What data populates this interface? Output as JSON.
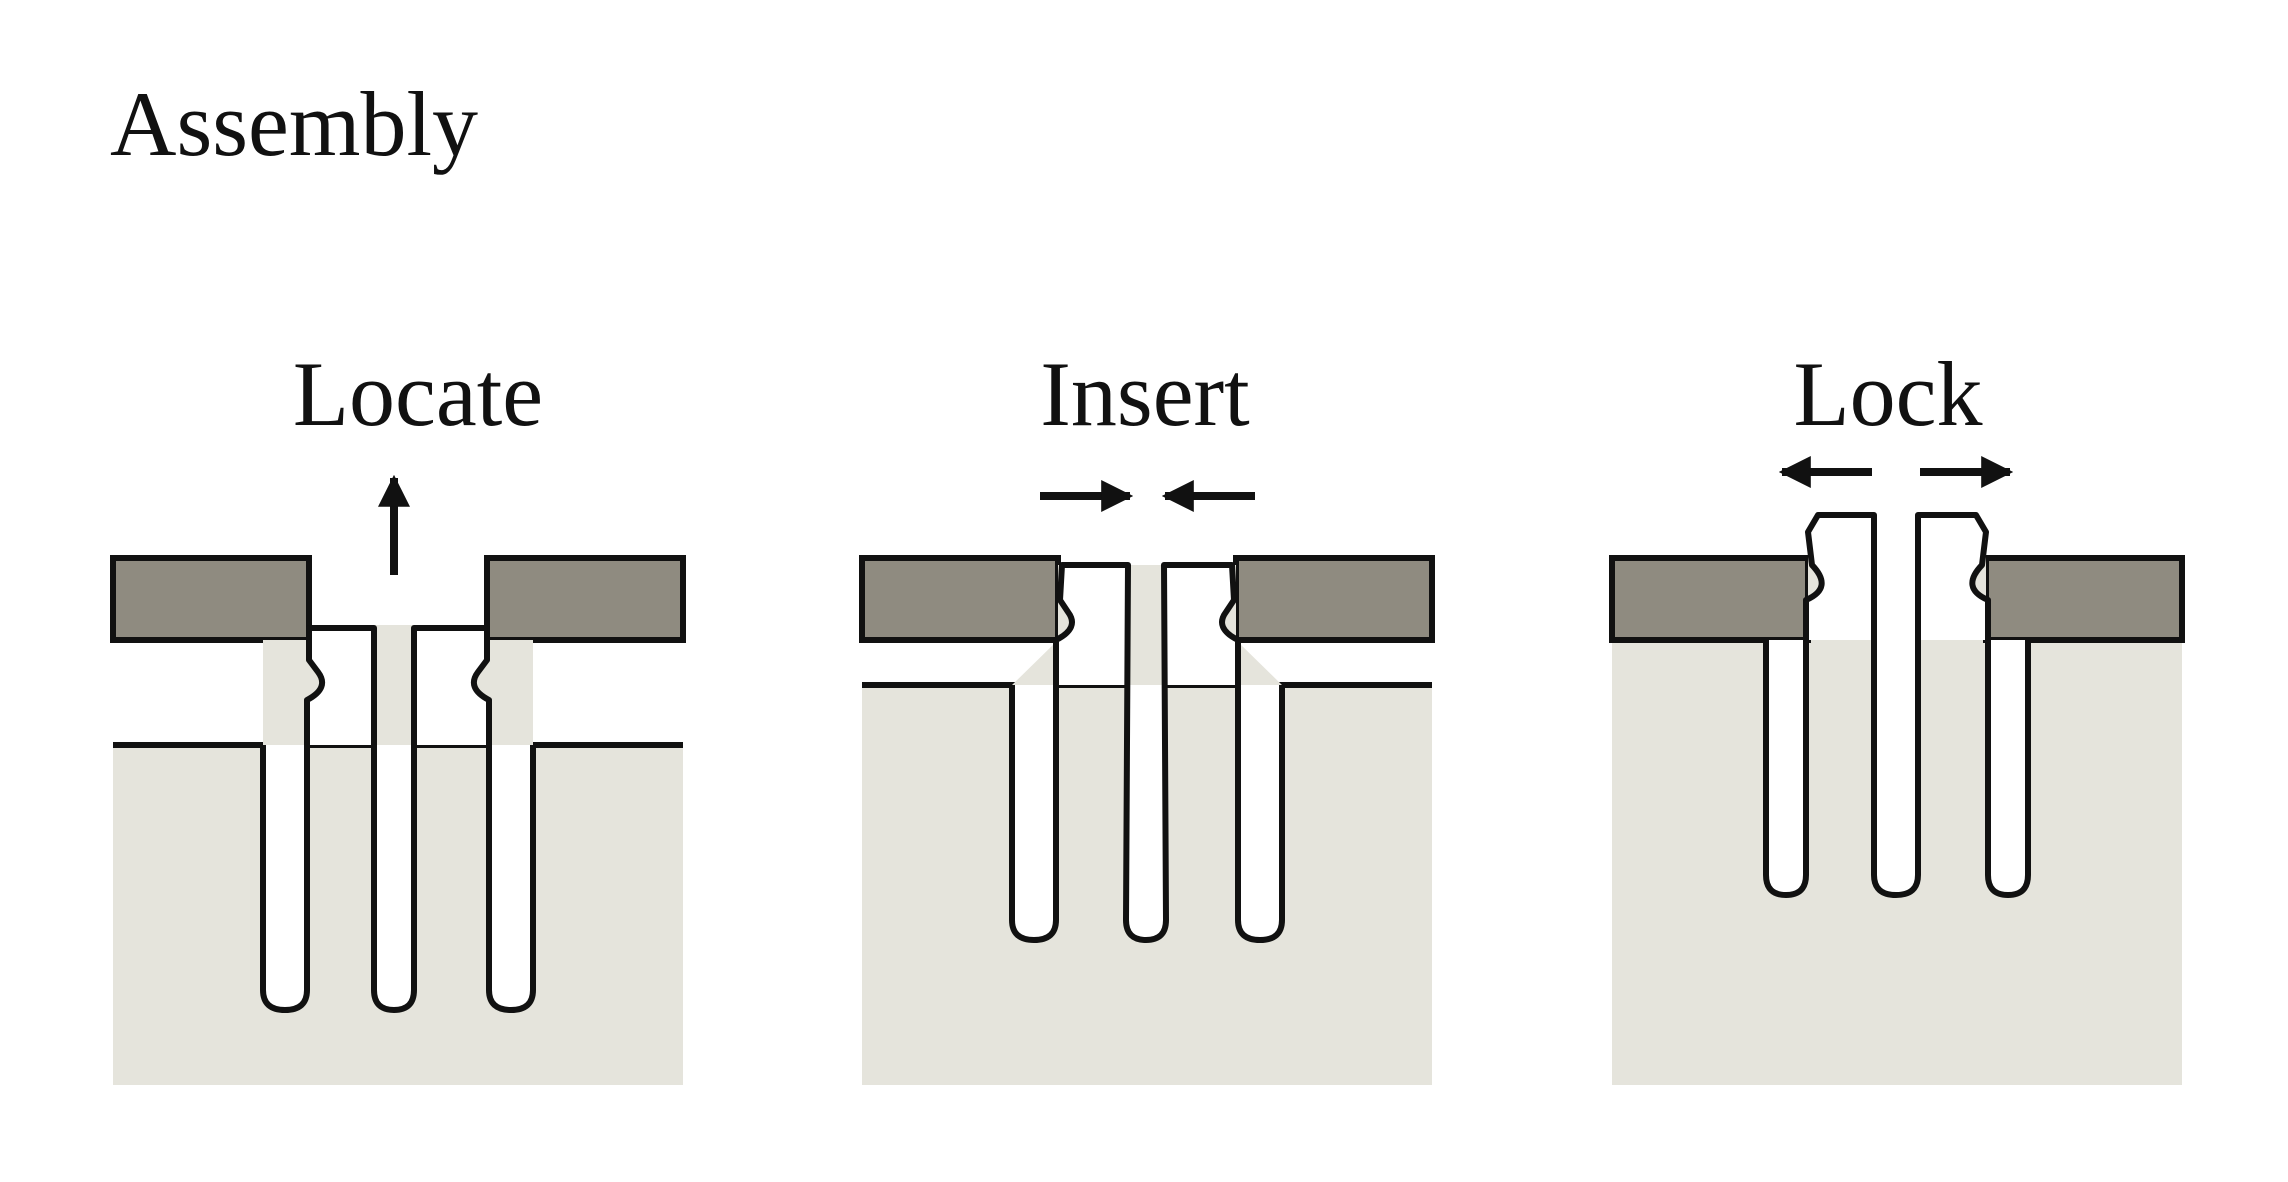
{
  "diagram": {
    "title": "Assembly",
    "steps": [
      {
        "label": "Locate"
      },
      {
        "label": "Insert"
      },
      {
        "label": "Lock"
      }
    ],
    "colors": {
      "panel": "#8f8b80",
      "body": "#e5e4dc",
      "outline": "#111111",
      "background": "#ffffff"
    }
  }
}
